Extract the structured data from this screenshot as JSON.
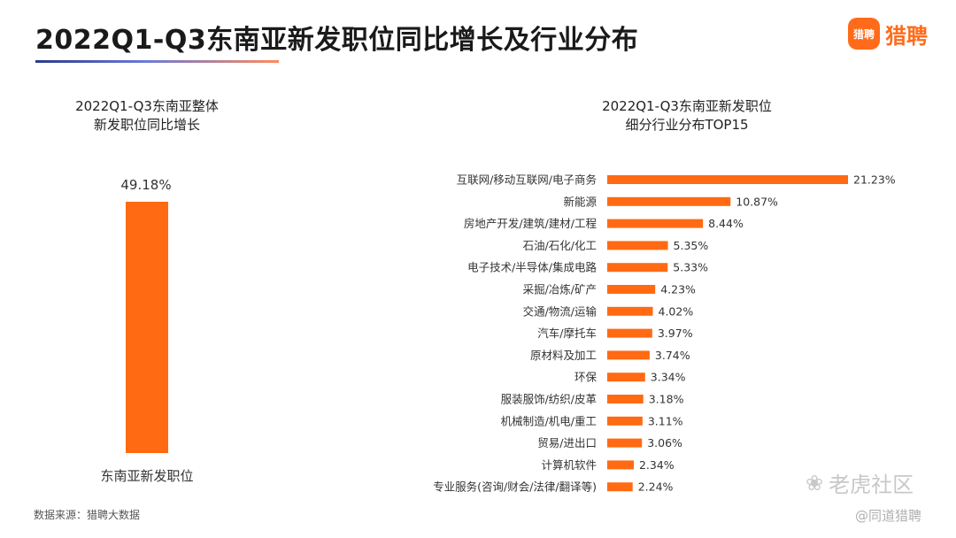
{
  "header": {
    "title": "2022Q1-Q3东南亚新发职位同比增长及行业分布",
    "logo_badge": "猎聘",
    "logo_text": "猎聘"
  },
  "left_chart": {
    "title_line1": "2022Q1-Q3东南亚整体",
    "title_line2": "新发职位同比增长"
  },
  "right_chart": {
    "title_line1": "2022Q1-Q3东南亚新发职位",
    "title_line2": "细分行业分布TOP15"
  },
  "footer": {
    "source": "数据来源：猎聘大数据",
    "watermark_main": "老虎社区",
    "watermark_sub": "@同道猎聘"
  },
  "colors": {
    "bar": "#ff6a13",
    "accent": "#ff6b1a"
  },
  "chart_data": [
    {
      "type": "bar",
      "title": "2022Q1-Q3东南亚整体 新发职位同比增长",
      "categories": [
        "东南亚新发职位"
      ],
      "values": [
        49.18
      ],
      "value_labels": [
        "49.18%"
      ],
      "unit": "%"
    },
    {
      "type": "bar",
      "orientation": "horizontal",
      "title": "2022Q1-Q3东南亚新发职位 细分行业分布TOP15",
      "categories": [
        "互联网/移动互联网/电子商务",
        "新能源",
        "房地产开发/建筑/建材/工程",
        "石油/石化/化工",
        "电子技术/半导体/集成电路",
        "采掘/冶炼/矿产",
        "交通/物流/运输",
        "汽车/摩托车",
        "原材料及加工",
        "环保",
        "服装服饰/纺织/皮革",
        "机械制造/机电/重工",
        "贸易/进出口",
        "计算机软件",
        "专业服务(咨询/财会/法律/翻译等)"
      ],
      "values": [
        21.23,
        10.87,
        8.44,
        5.35,
        5.33,
        4.23,
        4.02,
        3.97,
        3.74,
        3.34,
        3.18,
        3.11,
        3.06,
        2.34,
        2.24
      ],
      "value_labels": [
        "21.23%",
        "10.87%",
        "8.44%",
        "5.35%",
        "5.33%",
        "4.23%",
        "4.02%",
        "3.97%",
        "3.74%",
        "3.34%",
        "3.18%",
        "3.11%",
        "3.06%",
        "2.34%",
        "2.24%"
      ],
      "unit": "%"
    }
  ]
}
